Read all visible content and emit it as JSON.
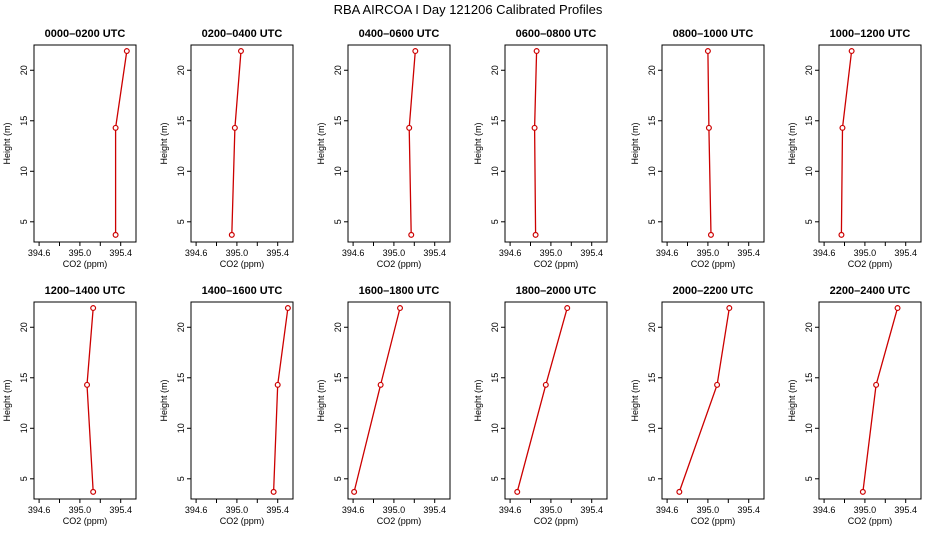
{
  "title": "RBA AIRCOA I  Day 121206  Calibrated Profiles",
  "xlabel": "CO2 (ppm)",
  "ylabel": "Height (m)",
  "x_ticks": [
    "394.6",
    "395.0",
    "395.4"
  ],
  "y_ticks": [
    "5",
    "10",
    "15",
    "20"
  ],
  "colors": {
    "line": "#cc0000",
    "axis": "#000000"
  },
  "chart_data": [
    {
      "type": "line",
      "title": "0000–0200 UTC",
      "xlim": [
        394.55,
        395.55
      ],
      "ylim": [
        3,
        22.5
      ],
      "grid": false,
      "series": [
        {
          "x": [
            395.35,
            395.35,
            395.46
          ],
          "y": [
            3.7,
            14.3,
            21.9
          ]
        }
      ]
    },
    {
      "type": "line",
      "title": "0200–0400 UTC",
      "xlim": [
        394.55,
        395.55
      ],
      "ylim": [
        3,
        22.5
      ],
      "grid": false,
      "series": [
        {
          "x": [
            394.95,
            394.98,
            395.04
          ],
          "y": [
            3.7,
            14.3,
            21.9
          ]
        }
      ]
    },
    {
      "type": "line",
      "title": "0400–0600 UTC",
      "xlim": [
        394.55,
        395.55
      ],
      "ylim": [
        3,
        22.5
      ],
      "grid": false,
      "series": [
        {
          "x": [
            395.17,
            395.15,
            395.21
          ],
          "y": [
            3.7,
            14.3,
            21.9
          ]
        }
      ]
    },
    {
      "type": "line",
      "title": "0600–0800 UTC",
      "xlim": [
        394.55,
        395.55
      ],
      "ylim": [
        3,
        22.5
      ],
      "grid": false,
      "series": [
        {
          "x": [
            394.85,
            394.84,
            394.86
          ],
          "y": [
            3.7,
            14.3,
            21.9
          ]
        }
      ]
    },
    {
      "type": "line",
      "title": "0800–1000 UTC",
      "xlim": [
        394.55,
        395.55
      ],
      "ylim": [
        3,
        22.5
      ],
      "grid": false,
      "series": [
        {
          "x": [
            395.03,
            395.01,
            395.0
          ],
          "y": [
            3.7,
            14.3,
            21.9
          ]
        }
      ]
    },
    {
      "type": "line",
      "title": "1000–1200 UTC",
      "xlim": [
        394.55,
        395.55
      ],
      "ylim": [
        3,
        22.5
      ],
      "grid": false,
      "series": [
        {
          "x": [
            394.77,
            394.78,
            394.87
          ],
          "y": [
            3.7,
            14.3,
            21.9
          ]
        }
      ]
    },
    {
      "type": "line",
      "title": "1200–1400 UTC",
      "xlim": [
        394.55,
        395.55
      ],
      "ylim": [
        3,
        22.5
      ],
      "grid": false,
      "series": [
        {
          "x": [
            395.13,
            395.07,
            395.13
          ],
          "y": [
            3.7,
            14.3,
            21.9
          ]
        }
      ]
    },
    {
      "type": "line",
      "title": "1400–1600 UTC",
      "xlim": [
        394.55,
        395.55
      ],
      "ylim": [
        3,
        22.5
      ],
      "grid": false,
      "series": [
        {
          "x": [
            395.36,
            395.4,
            395.5
          ],
          "y": [
            3.7,
            14.3,
            21.9
          ]
        }
      ]
    },
    {
      "type": "line",
      "title": "1600–1800 UTC",
      "xlim": [
        394.55,
        395.55
      ],
      "ylim": [
        3,
        22.5
      ],
      "grid": false,
      "series": [
        {
          "x": [
            394.61,
            394.87,
            395.06
          ],
          "y": [
            3.7,
            14.3,
            21.9
          ]
        }
      ]
    },
    {
      "type": "line",
      "title": "1800–2000 UTC",
      "xlim": [
        394.55,
        395.55
      ],
      "ylim": [
        3,
        22.5
      ],
      "grid": false,
      "series": [
        {
          "x": [
            394.67,
            394.95,
            395.16
          ],
          "y": [
            3.7,
            14.3,
            21.9
          ]
        }
      ]
    },
    {
      "type": "line",
      "title": "2000–2200 UTC",
      "xlim": [
        394.55,
        395.55
      ],
      "ylim": [
        3,
        22.5
      ],
      "grid": false,
      "series": [
        {
          "x": [
            394.72,
            395.09,
            395.21
          ],
          "y": [
            3.7,
            14.3,
            21.9
          ]
        }
      ]
    },
    {
      "type": "line",
      "title": "2200–2400 UTC",
      "xlim": [
        394.55,
        395.55
      ],
      "ylim": [
        3,
        22.5
      ],
      "grid": false,
      "series": [
        {
          "x": [
            394.98,
            395.11,
            395.32
          ],
          "y": [
            3.7,
            14.3,
            21.9
          ]
        }
      ]
    }
  ]
}
